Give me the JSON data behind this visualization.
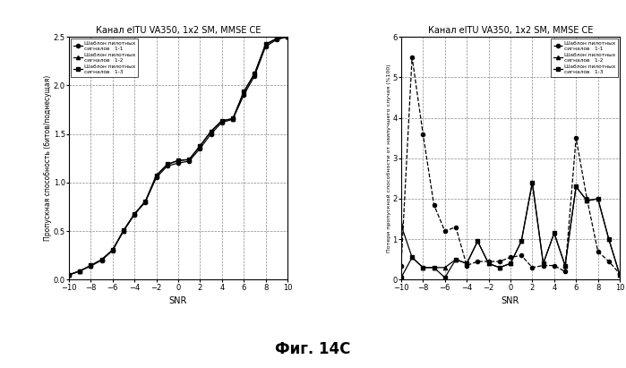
{
  "title": "Канал eITU VA350, 1x2 SM, MMSE CE",
  "title2": "Канал eITU VA350, 1x2 SM, MMSE CE",
  "footer": "Фиг. 14С",
  "snr": [
    -10,
    -9,
    -8,
    -7,
    -6,
    -5,
    -4,
    -3,
    -2,
    -1,
    0,
    1,
    2,
    3,
    4,
    5,
    6,
    7,
    8,
    9,
    10
  ],
  "left_ylabel": "Пропускная способность (битов/поднесущая)",
  "left_xlabel": "SNR",
  "right_ylabel": "Потери пропускной способности от наилучшего случая (%100)",
  "right_xlabel": "SNR",
  "left_ylim": [
    0,
    2.5
  ],
  "left_yticks": [
    0,
    0.5,
    1.0,
    1.5,
    2.0,
    2.5
  ],
  "right_ylim": [
    0,
    6
  ],
  "right_yticks": [
    0,
    1,
    2,
    3,
    4,
    5,
    6
  ],
  "xticks": [
    -10,
    -8,
    -6,
    -4,
    -2,
    0,
    2,
    4,
    6,
    8,
    10
  ],
  "legend_small_text": "Шаблон пилотных\nсигналов",
  "legend_labels": [
    "1-1",
    "1-2",
    "1-3"
  ],
  "series1_11": [
    0.05,
    0.09,
    0.14,
    0.2,
    0.3,
    0.5,
    0.67,
    0.8,
    1.05,
    1.17,
    1.2,
    1.22,
    1.35,
    1.5,
    1.62,
    1.65,
    1.9,
    2.1,
    2.4,
    2.47,
    2.5
  ],
  "series1_12": [
    0.05,
    0.09,
    0.145,
    0.205,
    0.305,
    0.505,
    0.675,
    0.805,
    1.07,
    1.185,
    1.225,
    1.235,
    1.375,
    1.525,
    1.635,
    1.655,
    1.93,
    2.12,
    2.42,
    2.48,
    2.5
  ],
  "series1_13": [
    0.048,
    0.088,
    0.148,
    0.208,
    0.308,
    0.508,
    0.678,
    0.808,
    1.075,
    1.188,
    1.228,
    1.238,
    1.378,
    1.528,
    1.638,
    1.658,
    1.935,
    2.125,
    2.425,
    2.482,
    2.502
  ],
  "series2_11": [
    0.35,
    5.5,
    3.6,
    1.85,
    1.2,
    1.3,
    0.35,
    0.45,
    0.45,
    0.45,
    0.55,
    0.6,
    0.3,
    0.35,
    0.35,
    0.2,
    3.5,
    2.0,
    0.7,
    0.45,
    0.15
  ],
  "series2_12": [
    1.35,
    0.55,
    0.3,
    0.3,
    0.3,
    0.5,
    0.4,
    0.95,
    0.4,
    0.3,
    0.4,
    0.95,
    2.4,
    0.4,
    1.15,
    0.35,
    2.3,
    1.95,
    2.0,
    1.0,
    0.12
  ],
  "series2_13": [
    0.05,
    0.55,
    0.3,
    0.3,
    0.05,
    0.5,
    0.4,
    0.95,
    0.4,
    0.3,
    0.4,
    0.95,
    2.4,
    0.4,
    1.15,
    0.35,
    2.3,
    1.95,
    2.0,
    1.0,
    0.12
  ],
  "marker_11": "o",
  "marker_12": "^",
  "marker_13": "s",
  "color_all": "#000000",
  "linestyle_left": "-",
  "linestyle_11_right": "--",
  "linestyle_23_right": "-"
}
